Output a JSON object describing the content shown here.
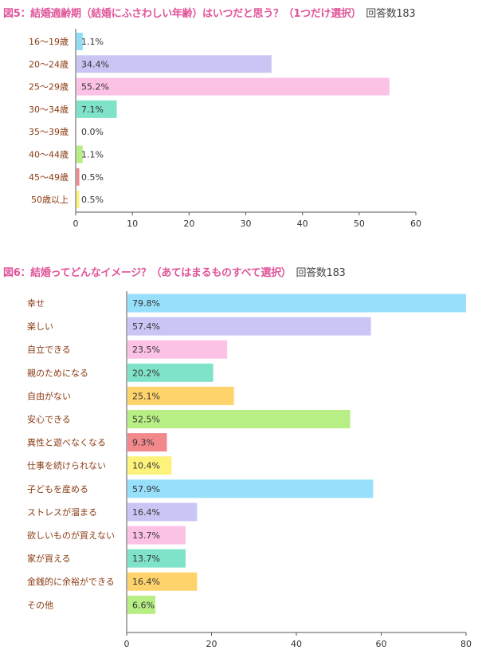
{
  "chart_data": [
    {
      "type": "bar",
      "orientation": "horizontal",
      "title": "図5：結婚適齢期（結婚にふさわしい年齢）はいつだと思う？（1つだけ選択）",
      "respondents": "回答数183",
      "categories": [
        "16〜19歳",
        "20〜24歳",
        "25〜29歳",
        "30〜34歳",
        "35〜39歳",
        "40〜44歳",
        "45〜49歳",
        "50歳以上"
      ],
      "values": [
        1.1,
        34.4,
        55.2,
        7.1,
        0.0,
        1.1,
        0.5,
        0.5
      ],
      "value_labels": [
        "1.1%",
        "34.4%",
        "55.2%",
        "7.1%",
        "0.0%",
        "1.1%",
        "0.5%",
        "0.5%"
      ],
      "colors": [
        "#8fdcf5",
        "#c9c6f5",
        "#fcc2e6",
        "#7fe3c9",
        "#ffd36b",
        "#b8ef84",
        "#f3888c",
        "#fdf27a"
      ],
      "xlim": [
        0,
        60
      ],
      "xticks": [
        "0",
        "10",
        "20",
        "30",
        "40",
        "50",
        "60"
      ],
      "grid": false
    },
    {
      "type": "bar",
      "orientation": "horizontal",
      "title": "図6：結婚ってどんなイメージ？（あてはまるものすべて選択）",
      "respondents": "回答数183",
      "categories": [
        "幸せ",
        "楽しい",
        "自立できる",
        "親のためになる",
        "自由がない",
        "安心できる",
        "異性と遊べなくなる",
        "仕事を続けられない",
        "子どもを産める",
        "ストレスが溜まる",
        "欲しいものが買えない",
        "家が買える",
        "金銭的に余裕ができる",
        "その他"
      ],
      "values": [
        79.8,
        57.4,
        23.5,
        20.2,
        25.1,
        52.5,
        9.3,
        10.4,
        57.9,
        16.4,
        13.7,
        13.7,
        16.4,
        6.6
      ],
      "value_labels": [
        "79.8%",
        "57.4%",
        "23.5%",
        "20.2%",
        "25.1%",
        "52.5%",
        "9.3%",
        "10.4%",
        "57.9%",
        "16.4%",
        "13.7%",
        "13.7%",
        "16.4%",
        "6.6%"
      ],
      "colors": [
        "#97e0fb",
        "#c9c6f5",
        "#fcc2e6",
        "#7fe3c9",
        "#ffd36b",
        "#b8ef84",
        "#f3888c",
        "#fdf27a",
        "#97e0fb",
        "#c9c6f5",
        "#fcc2e6",
        "#7fe3c9",
        "#ffd36b",
        "#b8ef84"
      ],
      "xlim": [
        0,
        80
      ],
      "xticks": [
        "0",
        "20",
        "40",
        "60",
        "80"
      ],
      "grid": false
    }
  ]
}
